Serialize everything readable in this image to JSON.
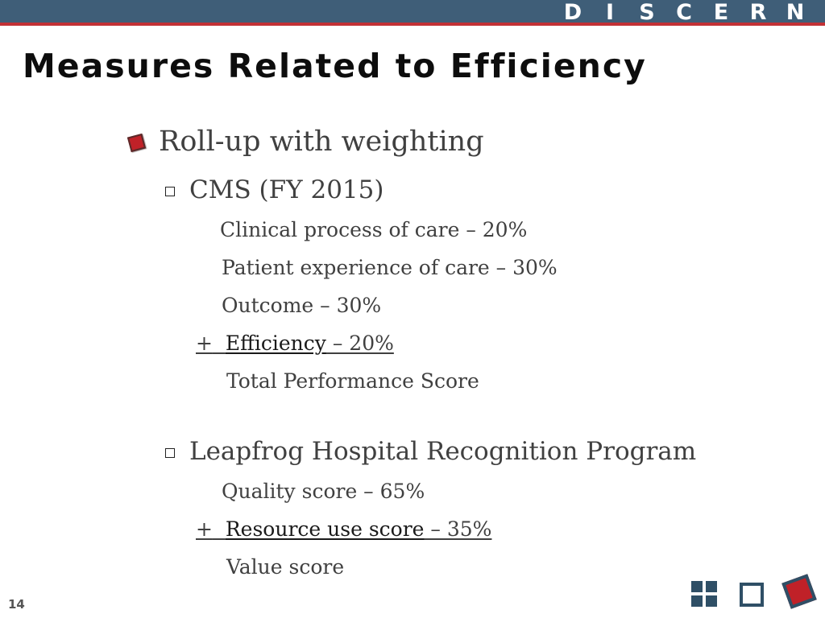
{
  "header": {
    "brand_letters": [
      "D",
      "I",
      "S",
      "C",
      "E",
      "R",
      "N"
    ],
    "bar_color": "#3f5e78",
    "accent_color": "#c23135"
  },
  "slide": {
    "title": "Measures Related to Efficiency",
    "page_number": "14"
  },
  "content": {
    "level1": "Roll-up with weighting",
    "cms": {
      "heading": "CMS (FY 2015)",
      "item1": "Clinical process of care – 20%",
      "item2": "Patient experience of care – 30%",
      "item3": "Outcome – 30%",
      "item4_prefix": "+",
      "item4_term": "Efficiency",
      "item4_rest": " – 20%",
      "total": "Total Performance Score"
    },
    "leapfrog": {
      "heading": "Leapfrog Hospital Recognition Program",
      "item1": "Quality score – 65%",
      "item2_prefix": "+",
      "item2_term": "Resource use score",
      "item2_rest": " – 35%",
      "total": "Value score"
    }
  },
  "nav_icons": [
    "grid-icon",
    "window-icon",
    "diamond-icon"
  ]
}
